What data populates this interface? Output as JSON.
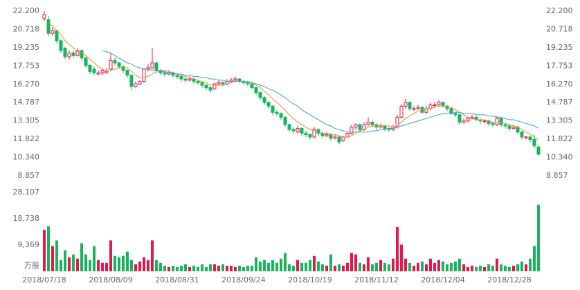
{
  "chart_data": {
    "type": "candlestick",
    "categories": [
      "2018/07/18",
      null,
      null,
      null,
      null,
      null,
      null,
      null,
      null,
      null,
      null,
      null,
      null,
      null,
      null,
      null,
      "2018/08/09",
      null,
      null,
      null,
      null,
      null,
      null,
      null,
      null,
      null,
      null,
      null,
      null,
      null,
      null,
      null,
      "2018/08/31",
      null,
      null,
      null,
      null,
      null,
      null,
      null,
      null,
      null,
      null,
      null,
      null,
      null,
      null,
      null,
      "2018/09/24",
      null,
      null,
      null,
      null,
      null,
      null,
      null,
      null,
      null,
      null,
      null,
      null,
      null,
      null,
      null,
      "2018/10/19",
      null,
      null,
      null,
      null,
      null,
      null,
      null,
      null,
      null,
      null,
      null,
      null,
      null,
      null,
      null,
      "2018/11/12",
      null,
      null,
      null,
      null,
      null,
      null,
      null,
      null,
      null,
      null,
      null,
      null,
      null,
      null,
      null,
      "2018/12/04",
      null,
      null,
      null,
      null,
      null,
      null,
      null,
      null,
      null,
      null,
      null,
      null,
      null,
      null,
      null,
      "2018/12/28",
      null,
      null,
      null,
      null,
      null,
      null,
      null
    ],
    "open": [
      21.6,
      21.5,
      20.4,
      20.6,
      19.8,
      19.2,
      18.5,
      18.8,
      18.6,
      19.0,
      18.4,
      17.8,
      17.5,
      17.1,
      17.2,
      17.2,
      17.5,
      18.2,
      18.0,
      17.7,
      17.4,
      17.0,
      16.1,
      16.3,
      16.5,
      17.5,
      17.6,
      18.0,
      17.4,
      17.2,
      17.1,
      17.2,
      17.0,
      16.9,
      16.7,
      16.6,
      16.7,
      16.5,
      16.4,
      16.2,
      16.0,
      15.9,
      16.3,
      16.4,
      16.3,
      16.5,
      16.6,
      16.7,
      16.5,
      16.4,
      16.3,
      16.0,
      15.6,
      15.2,
      14.8,
      14.5,
      14.0,
      13.9,
      13.6,
      13.0,
      12.6,
      12.4,
      12.7,
      12.3,
      12.2,
      12.0,
      12.6,
      12.3,
      12.1,
      12.2,
      11.9,
      12.0,
      11.7,
      12.0,
      12.3,
      12.8,
      13.0,
      12.6,
      13.0,
      13.2,
      13.0,
      12.8,
      12.9,
      12.7,
      12.6,
      12.8,
      13.6,
      14.5,
      14.8,
      14.3,
      14.3,
      14.4,
      14.0,
      14.3,
      14.6,
      14.6,
      14.8,
      14.5,
      14.3,
      13.9,
      13.8,
      13.2,
      13.3,
      13.5,
      13.6,
      13.4,
      13.3,
      13.3,
      13.1,
      13.0,
      13.5,
      13.0,
      12.9,
      12.7,
      12.8,
      12.4,
      12.0,
      12.0,
      11.8,
      11.2
    ],
    "high": [
      22.2,
      21.8,
      20.9,
      20.7,
      19.9,
      19.3,
      19.0,
      19.0,
      19.2,
      19.1,
      18.5,
      17.9,
      17.7,
      17.4,
      17.6,
      17.6,
      18.8,
      18.4,
      18.1,
      17.8,
      17.5,
      17.1,
      16.5,
      16.6,
      17.6,
      17.9,
      19.2,
      18.1,
      17.5,
      17.3,
      17.4,
      17.3,
      17.1,
      17.0,
      16.8,
      16.9,
      16.8,
      16.6,
      16.5,
      16.3,
      16.1,
      16.4,
      16.6,
      16.5,
      16.7,
      16.8,
      16.9,
      16.8,
      16.6,
      16.5,
      16.4,
      16.1,
      15.7,
      15.3,
      14.9,
      14.6,
      14.2,
      14.0,
      13.7,
      13.1,
      12.8,
      12.9,
      12.8,
      12.5,
      12.3,
      12.8,
      12.7,
      12.4,
      12.4,
      12.3,
      12.2,
      12.1,
      12.1,
      12.4,
      13.0,
      13.1,
      13.1,
      13.2,
      13.6,
      13.3,
      13.1,
      13.1,
      13.0,
      12.8,
      13.0,
      13.8,
      14.7,
      15.1,
      14.9,
      14.5,
      14.6,
      14.5,
      14.5,
      14.8,
      14.8,
      15.0,
      14.9,
      14.6,
      14.4,
      14.0,
      13.9,
      13.5,
      13.6,
      13.8,
      13.7,
      13.5,
      13.4,
      13.4,
      13.2,
      13.7,
      13.6,
      13.1,
      13.0,
      13.0,
      12.9,
      12.5,
      12.1,
      12.1,
      12.2,
      11.3
    ],
    "low": [
      21.4,
      20.2,
      20.2,
      19.6,
      18.8,
      18.3,
      18.3,
      18.4,
      18.5,
      18.2,
      17.6,
      17.1,
      17.0,
      17.0,
      17.0,
      17.1,
      17.4,
      17.8,
      17.5,
      17.2,
      16.8,
      15.8,
      16.0,
      16.2,
      16.4,
      17.3,
      17.5,
      17.2,
      17.0,
      16.9,
      17.0,
      16.8,
      16.7,
      16.5,
      16.4,
      16.5,
      16.3,
      16.2,
      16.0,
      15.8,
      15.6,
      15.8,
      16.2,
      16.1,
      16.2,
      16.4,
      16.5,
      16.4,
      16.2,
      16.1,
      15.9,
      15.4,
      15.0,
      14.6,
      14.3,
      13.8,
      13.7,
      13.4,
      12.8,
      12.4,
      12.3,
      12.3,
      12.1,
      12.0,
      11.8,
      11.9,
      12.1,
      11.9,
      12.0,
      11.7,
      11.8,
      11.4,
      11.6,
      11.9,
      12.2,
      12.6,
      12.4,
      12.5,
      12.9,
      12.8,
      12.6,
      12.7,
      12.5,
      12.4,
      12.5,
      12.7,
      13.5,
      14.3,
      14.1,
      14.1,
      14.2,
      13.9,
      13.9,
      14.2,
      14.4,
      14.5,
      14.4,
      14.1,
      13.8,
      13.6,
      13.0,
      13.1,
      13.2,
      13.4,
      13.3,
      13.1,
      13.1,
      12.9,
      12.8,
      12.9,
      12.8,
      12.7,
      12.5,
      12.6,
      12.2,
      11.8,
      11.8,
      11.6,
      11.1,
      10.5
    ],
    "close": [
      21.9,
      20.4,
      20.6,
      19.8,
      19.0,
      18.5,
      18.8,
      18.6,
      19.0,
      18.4,
      17.8,
      17.3,
      17.2,
      17.2,
      17.4,
      17.3,
      18.2,
      18.0,
      17.7,
      17.4,
      17.0,
      16.1,
      16.3,
      16.5,
      17.5,
      17.6,
      18.0,
      17.4,
      17.2,
      17.1,
      17.2,
      17.0,
      16.9,
      16.7,
      16.6,
      16.7,
      16.5,
      16.4,
      16.2,
      16.0,
      15.8,
      16.3,
      16.4,
      16.3,
      16.5,
      16.6,
      16.7,
      16.5,
      16.4,
      16.3,
      16.0,
      15.6,
      15.2,
      14.8,
      14.5,
      14.0,
      13.9,
      13.6,
      13.0,
      12.6,
      12.5,
      12.7,
      12.3,
      12.2,
      12.0,
      12.6,
      12.3,
      12.1,
      12.2,
      11.9,
      12.0,
      11.6,
      12.0,
      12.3,
      12.8,
      13.0,
      12.6,
      13.0,
      13.2,
      13.0,
      12.8,
      12.9,
      12.7,
      12.6,
      12.8,
      13.6,
      14.5,
      14.8,
      14.3,
      14.3,
      14.4,
      14.0,
      14.3,
      14.6,
      14.6,
      14.8,
      14.5,
      14.3,
      13.9,
      13.8,
      13.2,
      13.3,
      13.5,
      13.6,
      13.4,
      13.3,
      13.3,
      13.1,
      13.0,
      13.5,
      13.0,
      12.9,
      12.7,
      12.8,
      12.4,
      12.0,
      12.0,
      11.8,
      11.3,
      10.6
    ],
    "volume": [
      14800,
      16000,
      9000,
      11000,
      4000,
      7500,
      5000,
      6000,
      4500,
      10000,
      6000,
      4000,
      9000,
      4000,
      3000,
      3000,
      11000,
      5500,
      5000,
      5500,
      7000,
      4000,
      2500,
      3500,
      5000,
      4000,
      11000,
      4000,
      3000,
      2000,
      1500,
      2000,
      1500,
      2000,
      2500,
      1500,
      2000,
      1500,
      2500,
      1500,
      2500,
      2500,
      2000,
      2500,
      2000,
      2000,
      1500,
      2000,
      1500,
      2000,
      2000,
      5000,
      3500,
      4000,
      3000,
      4000,
      3000,
      4500,
      6500,
      2500,
      2000,
      4000,
      3000,
      3000,
      4000,
      5500,
      3500,
      2500,
      2000,
      6000,
      2000,
      2500,
      2000,
      3000,
      6500,
      6000,
      3000,
      2500,
      5000,
      2500,
      3000,
      4000,
      3000,
      2500,
      4500,
      15800,
      9500,
      4500,
      3000,
      2000,
      3000,
      3500,
      2500,
      4500,
      3000,
      4000,
      3500,
      2500,
      3000,
      3500,
      4500,
      2500,
      1500,
      2000,
      1500,
      2000,
      1500,
      2500,
      2000,
      4500,
      2500,
      2000,
      1500,
      2000,
      2500,
      3500,
      2500,
      4500,
      9000,
      23700
    ],
    "series": [
      {
        "color": "#f08c2a",
        "values": [
          null,
          21.2,
          21.0,
          20.6,
          20.3,
          19.8,
          19.5,
          19.2,
          18.9,
          18.8,
          18.6,
          18.3,
          18.0,
          17.7,
          17.5,
          17.3,
          17.4,
          17.5,
          17.6,
          17.6,
          17.6,
          17.3,
          17.0,
          16.8,
          16.8,
          16.9,
          17.1,
          17.3,
          17.4,
          17.4,
          17.3,
          17.2,
          17.1,
          17.0,
          16.9,
          16.8,
          16.7,
          16.6,
          16.5,
          16.4,
          16.2,
          16.2,
          16.2,
          16.2,
          16.3,
          16.4,
          16.5,
          16.5,
          16.5,
          16.5,
          16.4,
          16.2,
          16.0,
          15.7,
          15.4,
          15.1,
          14.8,
          14.5,
          14.2,
          13.8,
          13.5,
          13.2,
          13.0,
          12.8,
          12.6,
          12.5,
          12.4,
          12.3,
          12.3,
          12.2,
          12.2,
          12.1,
          12.0,
          12.0,
          12.1,
          12.3,
          12.5,
          12.6,
          12.8,
          12.9,
          12.9,
          12.9,
          12.9,
          12.9,
          12.8,
          12.9,
          13.2,
          13.5,
          13.7,
          13.9,
          14.1,
          14.2,
          14.3,
          14.3,
          14.4,
          14.5,
          14.5,
          14.5,
          14.4,
          14.2,
          14.0,
          13.8,
          13.6,
          13.5,
          13.4,
          13.4,
          13.4,
          13.3,
          13.2,
          13.2,
          13.2,
          13.1,
          13.0,
          12.9,
          12.8,
          12.6,
          12.4,
          12.2,
          12.0,
          11.7
        ]
      },
      {
        "color": "#3a9de0",
        "values": [
          null,
          null,
          null,
          null,
          null,
          null,
          null,
          null,
          null,
          null,
          null,
          null,
          null,
          null,
          19.0,
          18.9,
          18.8,
          18.6,
          18.4,
          18.2,
          18.0,
          17.9,
          17.7,
          17.6,
          17.5,
          17.5,
          17.4,
          17.4,
          17.3,
          17.3,
          17.2,
          17.2,
          17.1,
          17.1,
          17.0,
          17.0,
          16.9,
          16.9,
          16.8,
          16.8,
          16.7,
          16.7,
          16.6,
          16.6,
          16.5,
          16.5,
          16.5,
          16.5,
          16.5,
          16.4,
          16.4,
          16.3,
          16.2,
          16.1,
          15.9,
          15.8,
          15.6,
          15.4,
          15.2,
          14.9,
          14.7,
          14.5,
          14.2,
          14.0,
          13.8,
          13.6,
          13.4,
          13.2,
          13.0,
          12.9,
          12.7,
          12.6,
          12.5,
          12.4,
          12.4,
          12.4,
          12.4,
          12.4,
          12.4,
          12.5,
          12.5,
          12.6,
          12.6,
          12.7,
          12.7,
          12.8,
          12.9,
          13.0,
          13.1,
          13.2,
          13.3,
          13.4,
          13.5,
          13.6,
          13.7,
          13.8,
          13.9,
          13.9,
          14.0,
          14.0,
          14.0,
          13.9,
          13.9,
          13.9,
          13.8,
          13.8,
          13.8,
          13.7,
          13.7,
          13.6,
          13.6,
          13.5,
          13.4,
          13.4,
          13.3,
          13.2,
          13.1,
          13.0,
          12.9,
          12.7
        ]
      }
    ],
    "up_color": "#e3174a",
    "down_color": "#16b55c",
    "ylim": [
      8.857,
      22.2
    ],
    "yticks": [
      {
        "value": 22.2,
        "label": "22.200"
      },
      {
        "value": 20.718,
        "label": "20.718"
      },
      {
        "value": 19.235,
        "label": "19.235"
      },
      {
        "value": 17.753,
        "label": "17.753"
      },
      {
        "value": 16.27,
        "label": "16.270"
      },
      {
        "value": 14.787,
        "label": "14.787"
      },
      {
        "value": 13.305,
        "label": "13.305"
      },
      {
        "value": 11.822,
        "label": "11.822"
      },
      {
        "value": 10.34,
        "label": "10.340"
      },
      {
        "value": 8.857,
        "label": "8.857"
      }
    ],
    "volume_ylim": [
      0,
      28107
    ],
    "volume_yticks": [
      {
        "value": 28107,
        "label": "28,107"
      },
      {
        "value": 18738,
        "label": "18,738"
      },
      {
        "value": 9369,
        "label": "9,369"
      }
    ],
    "volume_unit": "万股",
    "grid": false
  }
}
